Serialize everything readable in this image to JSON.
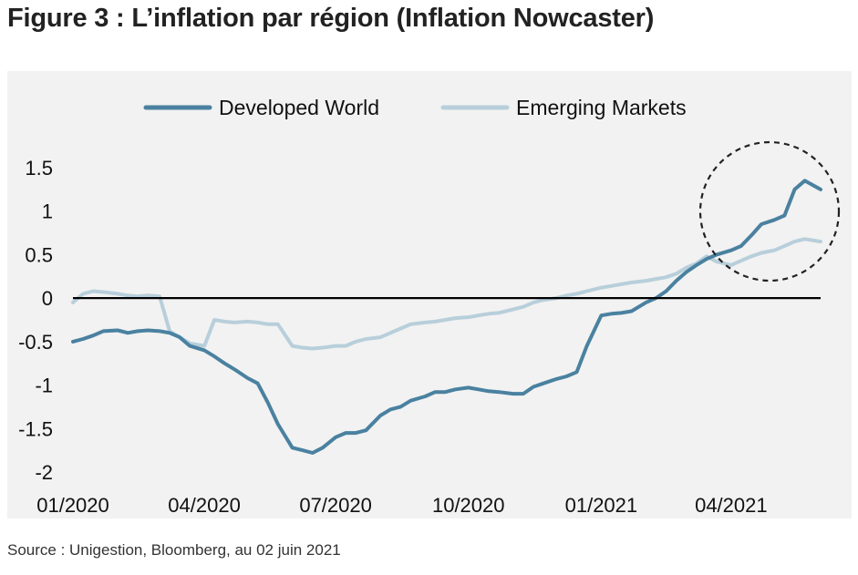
{
  "figure": {
    "title": "Figure 3 : L’inflation par région (Inflation Nowcaster)",
    "source": "Source : Unigestion, Bloomberg, au 02 juin 2021"
  },
  "colors": {
    "developed": "#4a81a0",
    "emerging": "#b8cfdb",
    "background": "#f2f2f2",
    "zero_line": "#000000",
    "highlight_circle": "#222222"
  },
  "chart_data": {
    "type": "line",
    "title": "",
    "xlabel": "",
    "ylabel": "",
    "ylim": [
      -2,
      1.5
    ],
    "yticks": [
      1.5,
      1,
      0.5,
      0,
      -0.5,
      -1,
      -1.5,
      -2
    ],
    "ytick_labels": [
      "1.5",
      "1",
      "0.5",
      "0",
      "-0.5",
      "-1",
      "-1.5",
      "-2"
    ],
    "xlim": [
      "2020-01-01",
      "2021-06-02"
    ],
    "xticks": [
      "2020-01-01",
      "2020-04-01",
      "2020-07-01",
      "2020-10-01",
      "2021-01-01",
      "2021-04-01"
    ],
    "xtick_labels": [
      "01/2020",
      "04/2020",
      "07/2020",
      "10/2020",
      "01/2021",
      "04/2021"
    ],
    "grid": false,
    "zero_line": true,
    "legend_position": "top-center",
    "annotation": "dashed circle highlighting Apr–Jun 2021",
    "series": [
      {
        "name": "Developed World",
        "x": [
          "2020-01-01",
          "2020-01-08",
          "2020-01-15",
          "2020-01-22",
          "2020-02-01",
          "2020-02-08",
          "2020-02-15",
          "2020-02-22",
          "2020-03-01",
          "2020-03-08",
          "2020-03-15",
          "2020-03-22",
          "2020-04-01",
          "2020-04-08",
          "2020-04-15",
          "2020-04-22",
          "2020-05-01",
          "2020-05-08",
          "2020-05-15",
          "2020-05-22",
          "2020-06-01",
          "2020-06-08",
          "2020-06-15",
          "2020-06-22",
          "2020-07-01",
          "2020-07-08",
          "2020-07-15",
          "2020-07-22",
          "2020-08-01",
          "2020-08-08",
          "2020-08-15",
          "2020-08-22",
          "2020-09-01",
          "2020-09-08",
          "2020-09-15",
          "2020-09-22",
          "2020-10-01",
          "2020-10-08",
          "2020-10-15",
          "2020-10-22",
          "2020-11-01",
          "2020-11-08",
          "2020-11-15",
          "2020-11-22",
          "2020-12-01",
          "2020-12-08",
          "2020-12-15",
          "2020-12-22",
          "2021-01-01",
          "2021-01-08",
          "2021-01-15",
          "2021-01-22",
          "2021-02-01",
          "2021-02-08",
          "2021-02-15",
          "2021-02-22",
          "2021-03-01",
          "2021-03-08",
          "2021-03-15",
          "2021-03-22",
          "2021-04-01",
          "2021-04-08",
          "2021-04-15",
          "2021-04-22",
          "2021-05-01",
          "2021-05-08",
          "2021-05-15",
          "2021-05-22",
          "2021-06-02"
        ],
        "values": [
          -0.5,
          -0.47,
          -0.43,
          -0.38,
          -0.37,
          -0.4,
          -0.38,
          -0.37,
          -0.38,
          -0.4,
          -0.45,
          -0.55,
          -0.6,
          -0.67,
          -0.75,
          -0.82,
          -0.92,
          -0.98,
          -1.2,
          -1.45,
          -1.72,
          -1.75,
          -1.78,
          -1.72,
          -1.6,
          -1.55,
          -1.55,
          -1.52,
          -1.35,
          -1.28,
          -1.25,
          -1.18,
          -1.13,
          -1.08,
          -1.08,
          -1.05,
          -1.03,
          -1.05,
          -1.07,
          -1.08,
          -1.1,
          -1.1,
          -1.02,
          -0.98,
          -0.93,
          -0.9,
          -0.85,
          -0.55,
          -0.2,
          -0.18,
          -0.17,
          -0.15,
          -0.05,
          0.0,
          0.08,
          0.2,
          0.3,
          0.38,
          0.45,
          0.5,
          0.55,
          0.6,
          0.72,
          0.85,
          0.9,
          0.95,
          1.25,
          1.35,
          1.25
        ]
      },
      {
        "name": "Emerging Markets",
        "x": [
          "2020-01-01",
          "2020-01-08",
          "2020-01-15",
          "2020-01-22",
          "2020-02-01",
          "2020-02-08",
          "2020-02-15",
          "2020-02-22",
          "2020-03-01",
          "2020-03-08",
          "2020-03-15",
          "2020-03-22",
          "2020-04-01",
          "2020-04-08",
          "2020-04-15",
          "2020-04-22",
          "2020-05-01",
          "2020-05-08",
          "2020-05-15",
          "2020-05-22",
          "2020-06-01",
          "2020-06-08",
          "2020-06-15",
          "2020-06-22",
          "2020-07-01",
          "2020-07-08",
          "2020-07-15",
          "2020-07-22",
          "2020-08-01",
          "2020-08-08",
          "2020-08-15",
          "2020-08-22",
          "2020-09-01",
          "2020-09-08",
          "2020-09-15",
          "2020-09-22",
          "2020-10-01",
          "2020-10-08",
          "2020-10-15",
          "2020-10-22",
          "2020-11-01",
          "2020-11-08",
          "2020-11-15",
          "2020-11-22",
          "2020-12-01",
          "2020-12-08",
          "2020-12-15",
          "2020-12-22",
          "2021-01-01",
          "2021-01-08",
          "2021-01-15",
          "2021-01-22",
          "2021-02-01",
          "2021-02-08",
          "2021-02-15",
          "2021-02-22",
          "2021-03-01",
          "2021-03-08",
          "2021-03-15",
          "2021-03-22",
          "2021-04-01",
          "2021-04-08",
          "2021-04-15",
          "2021-04-22",
          "2021-05-01",
          "2021-05-08",
          "2021-05-15",
          "2021-05-22",
          "2021-06-02"
        ],
        "values": [
          -0.05,
          0.05,
          0.08,
          0.07,
          0.05,
          0.03,
          0.02,
          0.03,
          0.02,
          -0.38,
          -0.45,
          -0.52,
          -0.55,
          -0.25,
          -0.27,
          -0.28,
          -0.27,
          -0.28,
          -0.3,
          -0.3,
          -0.55,
          -0.57,
          -0.58,
          -0.57,
          -0.55,
          -0.55,
          -0.5,
          -0.47,
          -0.45,
          -0.4,
          -0.35,
          -0.3,
          -0.28,
          -0.27,
          -0.25,
          -0.23,
          -0.22,
          -0.2,
          -0.18,
          -0.17,
          -0.13,
          -0.1,
          -0.05,
          -0.02,
          0.0,
          0.03,
          0.05,
          0.08,
          0.12,
          0.14,
          0.16,
          0.18,
          0.2,
          0.22,
          0.24,
          0.28,
          0.35,
          0.4,
          0.48,
          0.42,
          0.38,
          0.43,
          0.48,
          0.52,
          0.55,
          0.6,
          0.65,
          0.68,
          0.65
        ]
      }
    ]
  }
}
